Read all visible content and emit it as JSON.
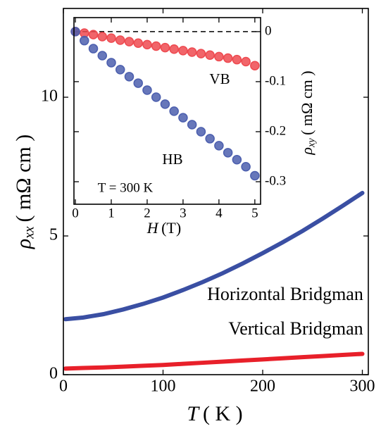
{
  "chart_data": [
    {
      "type": "line",
      "xlabel": {
        "symbol": "T",
        "unit": "( K )"
      },
      "ylabel": {
        "symbol": "ρ",
        "subscript": "xx",
        "unit": "( mΩ cm )"
      },
      "x": [
        2,
        20,
        40,
        60,
        80,
        100,
        120,
        140,
        160,
        180,
        200,
        220,
        240,
        260,
        280,
        300
      ],
      "series": [
        {
          "name": "Horizontal Bridgman",
          "color": "#3a4fa3",
          "values": [
            2.0,
            2.06,
            2.18,
            2.35,
            2.55,
            2.78,
            3.05,
            3.34,
            3.66,
            4.01,
            4.38,
            4.77,
            5.18,
            5.62,
            6.08,
            6.55
          ]
        },
        {
          "name": "Vertical Bridgman",
          "color": "#e8202a",
          "values": [
            0.22,
            0.24,
            0.26,
            0.29,
            0.32,
            0.35,
            0.39,
            0.43,
            0.47,
            0.51,
            0.55,
            0.59,
            0.63,
            0.67,
            0.71,
            0.75
          ]
        }
      ],
      "xlim": [
        0,
        306
      ],
      "ylim": [
        0,
        13.2
      ],
      "xticks": [
        0,
        100,
        200,
        300
      ],
      "yticks": [
        0,
        5,
        10
      ]
    },
    {
      "type": "scatter",
      "xlabel": {
        "symbol": "H",
        "unit": "(T)"
      },
      "ylabel": {
        "symbol": "ρ",
        "subscript": "xy",
        "unit": "( mΩ cm )"
      },
      "y_axis_side": "right",
      "annotation": "T = 300 K",
      "hline": 0,
      "x": [
        0,
        0.25,
        0.5,
        0.75,
        1,
        1.25,
        1.5,
        1.75,
        2,
        2.25,
        2.5,
        2.75,
        3,
        3.25,
        3.5,
        3.75,
        4,
        4.25,
        4.5,
        4.75,
        5
      ],
      "series": [
        {
          "name": "VB",
          "color": "#ee4a50",
          "values": [
            0,
            -0.003,
            -0.006,
            -0.01,
            -0.013,
            -0.017,
            -0.02,
            -0.023,
            -0.026,
            -0.029,
            -0.032,
            -0.035,
            -0.038,
            -0.041,
            -0.044,
            -0.047,
            -0.05,
            -0.053,
            -0.056,
            -0.06,
            -0.068
          ]
        },
        {
          "name": "HB",
          "color": "#4c5fae",
          "values": [
            0,
            -0.018,
            -0.034,
            -0.048,
            -0.062,
            -0.076,
            -0.09,
            -0.103,
            -0.117,
            -0.131,
            -0.145,
            -0.159,
            -0.172,
            -0.186,
            -0.2,
            -0.214,
            -0.228,
            -0.242,
            -0.256,
            -0.27,
            -0.288
          ]
        }
      ],
      "xlim": [
        -0.04,
        5.16
      ],
      "ylim": [
        -0.345,
        0.028
      ],
      "xticks": [
        0,
        1,
        2,
        3,
        4,
        5
      ],
      "yticks": [
        0,
        -0.1,
        -0.2,
        -0.3
      ]
    }
  ]
}
